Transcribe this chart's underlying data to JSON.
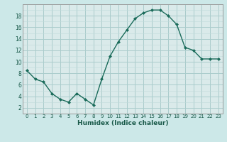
{
  "x": [
    0,
    1,
    2,
    3,
    4,
    5,
    6,
    7,
    8,
    9,
    10,
    11,
    12,
    13,
    14,
    15,
    16,
    17,
    18,
    19,
    20,
    21,
    22,
    23
  ],
  "y": [
    8.5,
    7.0,
    6.5,
    4.5,
    3.5,
    3.0,
    4.5,
    3.5,
    2.5,
    7.0,
    11.0,
    13.5,
    15.5,
    17.5,
    18.5,
    19.0,
    19.0,
    18.0,
    16.5,
    12.5,
    12.0,
    10.5,
    10.5,
    10.5
  ],
  "xlabel": "Humidex (Indice chaleur)",
  "line_color": "#1a6b5a",
  "marker_color": "#1a6b5a",
  "bg_color": "#cce8e8",
  "grid_major_color": "#aacccc",
  "grid_minor_color": "#c0dada",
  "plot_bg": "#daeaea",
  "xlim": [
    -0.5,
    23.5
  ],
  "ylim": [
    1,
    20
  ],
  "yticks": [
    2,
    4,
    6,
    8,
    10,
    12,
    14,
    16,
    18
  ],
  "xticks": [
    0,
    1,
    2,
    3,
    4,
    5,
    6,
    7,
    8,
    9,
    10,
    11,
    12,
    13,
    14,
    15,
    16,
    17,
    18,
    19,
    20,
    21,
    22,
    23
  ]
}
